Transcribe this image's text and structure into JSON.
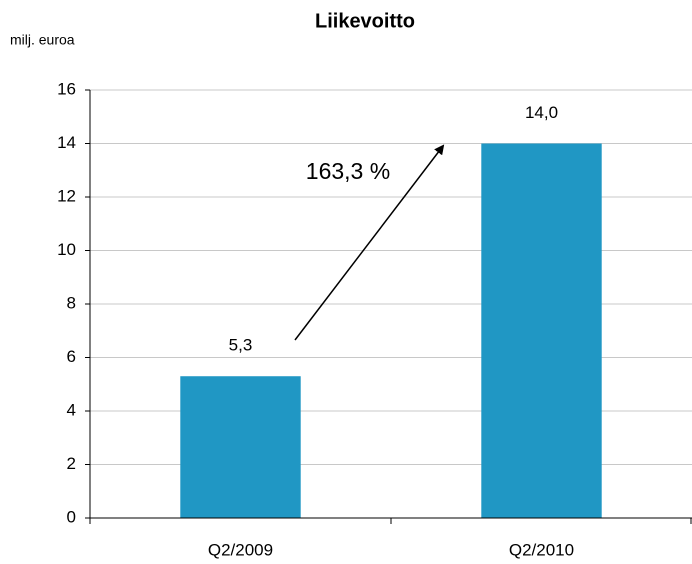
{
  "chart_data": {
    "type": "bar",
    "title": "Liikevoitto",
    "y_label": "milj. euroa",
    "categories": [
      "Q2/2009",
      "Q2/2010"
    ],
    "values": [
      5.3,
      14.0
    ],
    "value_labels": [
      "5,3",
      "14,0"
    ],
    "color": "#2097c4",
    "ylim": [
      0,
      16
    ],
    "yticks": [
      0,
      2,
      4,
      6,
      8,
      10,
      12,
      14,
      16
    ],
    "grid": true,
    "annotation": "163,3 %"
  }
}
